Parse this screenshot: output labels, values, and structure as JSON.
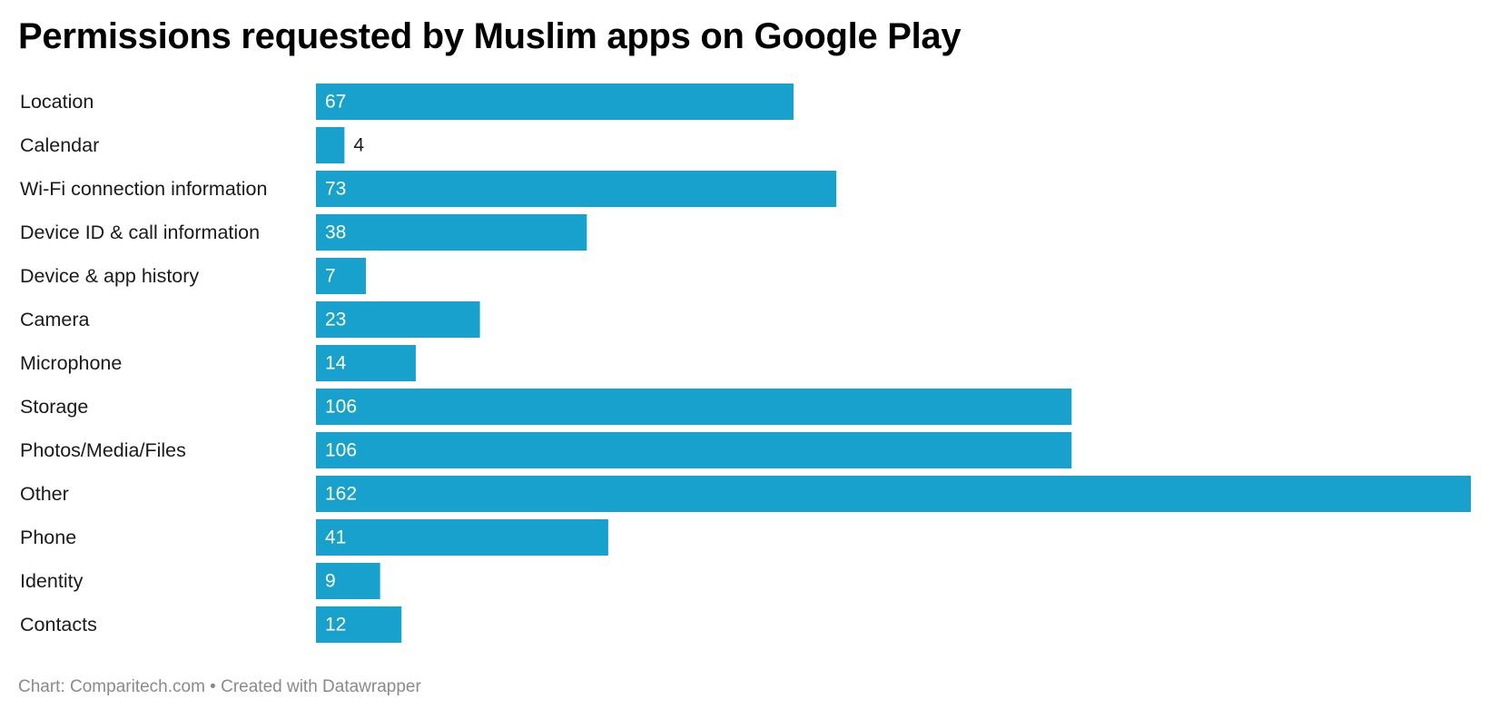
{
  "chart_data": {
    "type": "bar",
    "orientation": "horizontal",
    "title": "Permissions requested by Muslim apps on Google Play",
    "categories": [
      "Location",
      "Calendar",
      "Wi-Fi connection information",
      "Device ID & call information",
      "Device & app history",
      "Camera",
      "Microphone",
      "Storage",
      "Photos/Media/Files",
      "Other",
      "Phone",
      "Identity",
      "Contacts"
    ],
    "values": [
      67,
      4,
      73,
      38,
      7,
      23,
      14,
      106,
      106,
      162,
      41,
      9,
      12
    ],
    "xlim": [
      0,
      162
    ],
    "grid": false,
    "legend": "none",
    "bar_color": "#18a1cd",
    "footer": "Chart: Comparitech.com • Created with Datawrapper"
  }
}
